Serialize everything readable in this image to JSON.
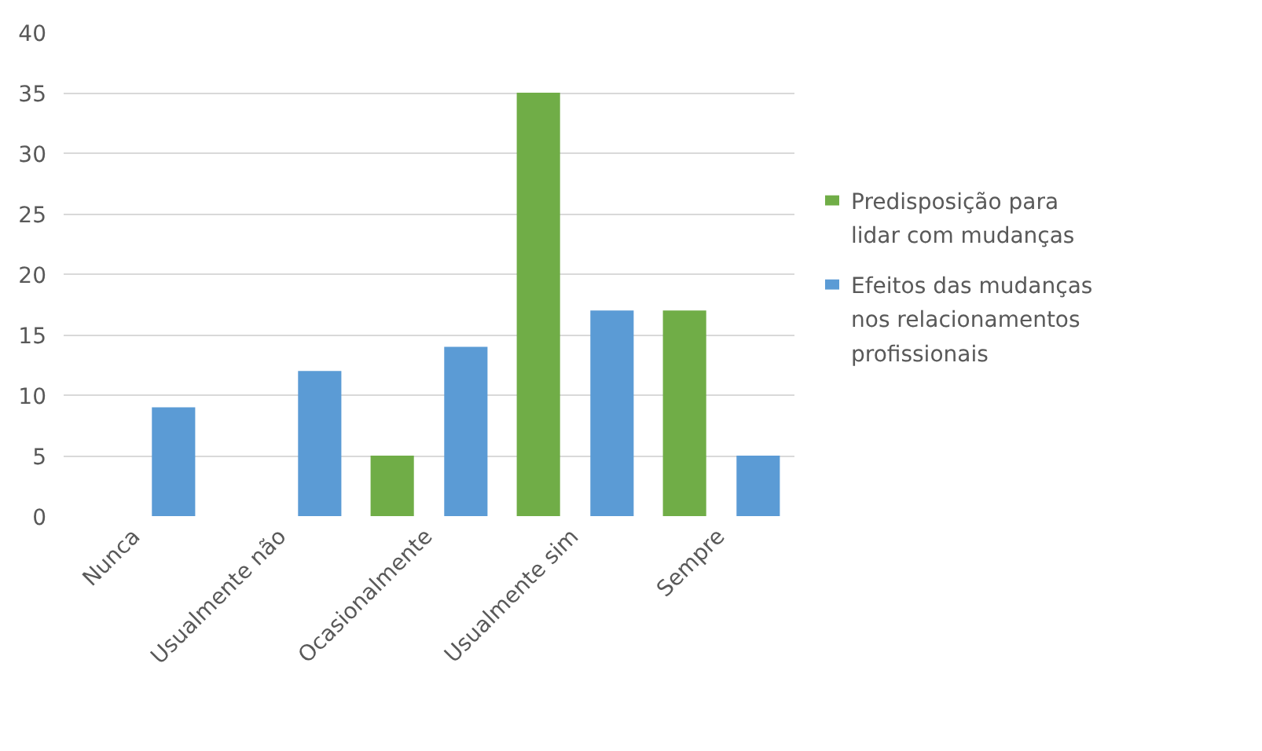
{
  "chart_data": {
    "type": "bar",
    "categories": [
      "Nunca",
      "Usualmente não",
      "Ocasionalmente",
      "Usualmente sim",
      "Sempre"
    ],
    "series": [
      {
        "name": "Predisposição para lidar com mudanças",
        "color": "#70ad47",
        "values": [
          0,
          0,
          5,
          35,
          17
        ]
      },
      {
        "name": "Efeitos das mudanças nos relacionamentos profissionais",
        "color": "#5b9bd5",
        "values": [
          9,
          12,
          14,
          17,
          5
        ]
      }
    ],
    "ylim": [
      0,
      40
    ],
    "yticks": [
      0,
      5,
      10,
      15,
      20,
      25,
      30,
      35,
      40
    ],
    "grid": "y",
    "legend": "right"
  }
}
